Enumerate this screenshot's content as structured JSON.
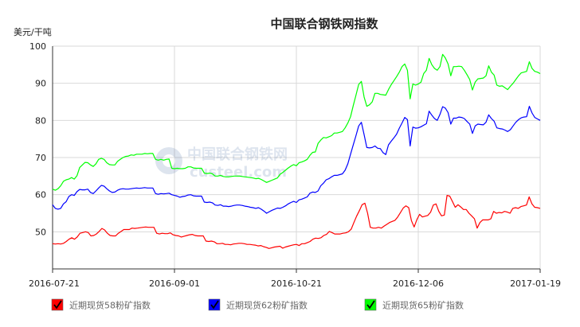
{
  "chart_data": {
    "type": "line",
    "title": "中国联合钢铁网指数",
    "ylabel": "美元/干吨",
    "xlabel": "",
    "ylim": [
      40,
      100
    ],
    "yticks": [
      50,
      60,
      70,
      80,
      90,
      100
    ],
    "x_tick_labels": [
      "2016-07-21",
      "2016-09-01",
      "2016-10-21",
      "2016-12-06",
      "2017-01-19"
    ],
    "grid": true,
    "legend_position": "bottom",
    "watermark": {
      "text_cn": "中国联合钢铁网",
      "text_en": "custeel.com"
    },
    "series": [
      {
        "name": "近期现货58粉矿指数",
        "color": "#ff0000",
        "values": [
          46.8,
          46.7,
          46.8,
          46.7,
          46.9,
          47.4,
          48.0,
          48.4,
          48.0,
          48.6,
          49.6,
          49.8,
          50.0,
          49.8,
          48.9,
          49.0,
          49.4,
          50.1,
          50.9,
          50.5,
          49.6,
          49.0,
          48.9,
          48.9,
          49.6,
          50.1,
          50.6,
          50.6,
          50.6,
          51.0,
          50.9,
          51.0,
          51.1,
          51.2,
          51.3,
          51.2,
          51.2,
          51.2,
          49.6,
          49.4,
          49.6,
          49.5,
          49.5,
          49.7,
          49.2,
          49.0,
          48.9,
          48.6,
          48.8,
          49.0,
          49.2,
          49.3,
          49.0,
          48.9,
          48.9,
          48.9,
          47.5,
          47.4,
          47.5,
          47.3,
          46.8,
          46.8,
          46.9,
          46.6,
          46.6,
          46.5,
          46.7,
          46.8,
          46.9,
          46.9,
          46.8,
          46.6,
          46.6,
          46.5,
          46.4,
          46.2,
          46.3,
          46.0,
          45.8,
          45.5,
          45.7,
          45.9,
          46.0,
          46.1,
          45.6,
          45.9,
          46.1,
          46.3,
          46.5,
          46.6,
          46.3,
          46.8,
          46.8,
          47.1,
          47.4,
          48.0,
          48.3,
          48.2,
          48.4,
          49.0,
          49.3,
          50.1,
          49.8,
          49.4,
          49.4,
          49.4,
          49.6,
          49.7,
          50.0,
          50.7,
          52.5,
          54.2,
          55.7,
          57.3,
          57.7,
          55.0,
          51.2,
          51.0,
          51.0,
          51.2,
          51.0,
          51.5,
          52.0,
          52.5,
          52.8,
          53.1,
          54.0,
          55.2,
          56.4,
          57.0,
          56.5,
          53.0,
          51.3,
          53.3,
          54.7,
          54.0,
          54.2,
          54.4,
          55.3,
          57.2,
          57.5,
          55.5,
          54.3,
          54.5,
          59.8,
          59.6,
          58.1,
          56.6,
          57.3,
          56.7,
          56.0,
          56.0,
          55.0,
          54.3,
          53.5,
          51.0,
          52.5,
          53.2,
          53.2,
          53.2,
          53.5,
          55.5,
          55.0,
          55.2,
          55.1,
          55.5,
          55.3,
          55.0,
          56.3,
          56.5,
          56.3,
          56.8,
          57.0,
          57.2,
          59.4,
          57.5,
          56.6,
          56.5,
          56.3
        ]
      },
      {
        "name": "近期现货62粉矿指数",
        "color": "#0000ff",
        "values": [
          57.3,
          56.3,
          56.1,
          56.3,
          57.5,
          58.1,
          59.5,
          60.0,
          59.8,
          60.8,
          61.4,
          61.3,
          61.3,
          61.5,
          60.6,
          60.3,
          61.0,
          61.8,
          62.5,
          62.3,
          61.6,
          61.0,
          60.6,
          60.7,
          61.2,
          61.5,
          61.6,
          61.5,
          61.5,
          61.6,
          61.7,
          61.8,
          61.7,
          61.8,
          61.9,
          61.8,
          61.8,
          61.8,
          60.3,
          60.1,
          60.3,
          60.2,
          60.3,
          60.4,
          60.0,
          59.8,
          59.6,
          59.3,
          59.5,
          59.6,
          59.9,
          60.0,
          59.7,
          59.6,
          59.6,
          59.6,
          58.0,
          57.9,
          58.0,
          57.8,
          57.2,
          57.1,
          57.3,
          56.9,
          56.9,
          56.8,
          56.9,
          57.1,
          57.2,
          57.2,
          57.1,
          56.9,
          56.8,
          56.6,
          56.5,
          56.3,
          56.5,
          56.1,
          55.6,
          55.0,
          55.4,
          55.8,
          56.1,
          56.4,
          56.3,
          56.6,
          57.0,
          57.5,
          57.9,
          58.2,
          57.9,
          58.6,
          58.8,
          59.1,
          59.4,
          60.4,
          60.7,
          60.6,
          61.0,
          62.4,
          63.1,
          64.0,
          64.3,
          64.8,
          65.2,
          65.2,
          65.4,
          65.6,
          66.6,
          68.3,
          70.9,
          73.4,
          75.9,
          78.5,
          79.5,
          76.2,
          72.7,
          72.6,
          72.7,
          73.1,
          72.5,
          72.4,
          71.3,
          70.8,
          73.4,
          74.4,
          75.3,
          76.3,
          77.9,
          79.3,
          80.8,
          80.2,
          73.1,
          78.2,
          77.9,
          78.0,
          78.3,
          78.7,
          79.1,
          82.5,
          81.4,
          80.5,
          80.0,
          81.6,
          83.7,
          83.3,
          82.1,
          79.0,
          80.6,
          80.6,
          80.9,
          80.8,
          80.5,
          79.7,
          79.0,
          76.5,
          78.5,
          79.0,
          78.9,
          78.8,
          79.5,
          81.5,
          80.5,
          79.8,
          78.0,
          77.8,
          77.7,
          77.4,
          77.0,
          77.5,
          78.5,
          79.5,
          80.2,
          80.7,
          80.9,
          81.0,
          83.8,
          82.0,
          80.8,
          80.4,
          80.0
        ]
      },
      {
        "name": "近期现货65粉矿指数",
        "color": "#00ff00",
        "values": [
          61.5,
          61.2,
          61.6,
          62.4,
          63.6,
          64.0,
          64.2,
          64.6,
          64.2,
          65.1,
          67.3,
          68.0,
          68.7,
          68.6,
          68.0,
          67.6,
          68.3,
          69.5,
          69.8,
          69.5,
          68.6,
          68.1,
          68.0,
          68.0,
          69.0,
          69.5,
          70.0,
          70.3,
          70.4,
          70.7,
          70.6,
          70.9,
          70.9,
          70.9,
          71.1,
          71.0,
          71.1,
          71.1,
          69.5,
          69.3,
          69.5,
          69.3,
          69.5,
          69.6,
          67.1,
          67.0,
          67.1,
          67.0,
          67.0,
          67.1,
          67.5,
          67.5,
          67.2,
          67.1,
          67.1,
          67.1,
          65.8,
          65.7,
          65.8,
          65.6,
          65.0,
          65.0,
          65.2,
          64.9,
          64.8,
          64.8,
          64.9,
          65.0,
          65.0,
          65.0,
          64.9,
          64.8,
          64.7,
          64.6,
          64.5,
          64.3,
          64.4,
          64.1,
          63.7,
          63.3,
          63.6,
          63.9,
          64.2,
          64.5,
          65.5,
          66.0,
          66.6,
          67.2,
          67.7,
          68.1,
          67.8,
          68.6,
          68.8,
          69.1,
          69.5,
          70.6,
          71.4,
          71.5,
          73.8,
          74.7,
          75.4,
          75.3,
          75.6,
          75.9,
          76.6,
          76.6,
          76.8,
          77.0,
          78.0,
          79.3,
          81.0,
          84.0,
          86.8,
          89.7,
          90.5,
          86.3,
          83.8,
          84.2,
          85.0,
          87.3,
          87.3,
          87.0,
          86.9,
          86.8,
          88.3,
          89.6,
          90.7,
          91.8,
          93.0,
          94.5,
          95.2,
          93.5,
          85.8,
          89.8,
          89.5,
          89.8,
          90.3,
          92.6,
          93.5,
          96.7,
          95.0,
          94.0,
          93.5,
          94.5,
          97.8,
          96.8,
          95.2,
          92.0,
          94.5,
          94.5,
          94.6,
          94.5,
          93.5,
          92.3,
          91.0,
          88.2,
          90.3,
          91.2,
          91.3,
          91.4,
          92.0,
          94.7,
          93.0,
          92.2,
          89.5,
          89.2,
          89.3,
          88.8,
          88.3,
          89.2,
          90.0,
          91.0,
          92.0,
          92.8,
          93.0,
          93.2,
          95.8,
          94.0,
          93.2,
          93.0,
          92.6
        ]
      }
    ]
  }
}
